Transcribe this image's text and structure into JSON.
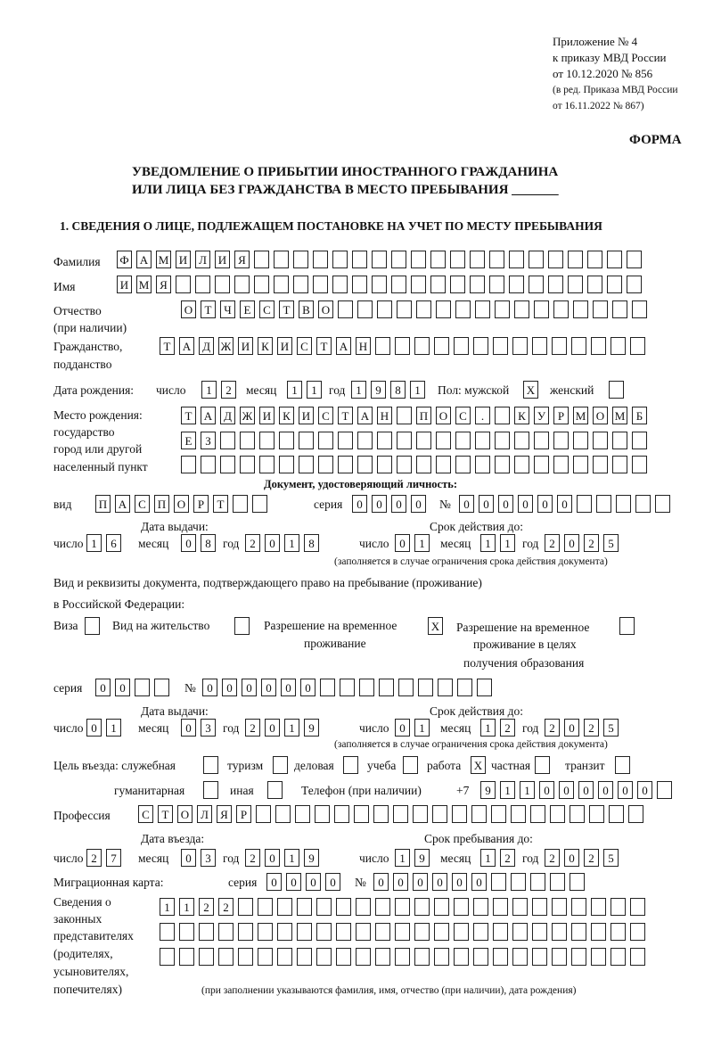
{
  "header": {
    "line1": "Приложение № 4",
    "line2": "к приказу МВД России",
    "line3": "от 10.12.2020 № 856",
    "line4": "(в ред. Приказа МВД России",
    "line5": "от 16.11.2022 № 867)",
    "form": "ФОРМА"
  },
  "title": {
    "line1": "УВЕДОМЛЕНИЕ О ПРИБЫТИИ ИНОСТРАННОГО ГРАЖДАНИНА",
    "line2": "ИЛИ ЛИЦА БЕЗ ГРАЖДАНСТВА В МЕСТО ПРЕБЫВАНИЯ _______"
  },
  "section1": "1. СВЕДЕНИЯ О ЛИЦЕ, ПОДЛЕЖАЩЕМ ПОСТАНОВКЕ НА УЧЕТ ПО МЕСТУ ПРЕБЫВАНИЯ",
  "labels": {
    "surname": "Фамилия",
    "name": "Имя",
    "patronymic": "Отчество",
    "patronymic2": "(при наличии)",
    "citizenship": "Гражданство,",
    "citizenship2": "подданство",
    "dob": "Дата рождения:",
    "day": "число",
    "month": "месяц",
    "year": "год",
    "sex": "Пол: мужской",
    "female": "женский",
    "pob": "Место рождения:",
    "pob2": "государство",
    "pob3": "город или другой",
    "pob4": "населенный пункт",
    "id_doc": "Документ, удостоверяющий личность:",
    "kind": "вид",
    "series": "серия",
    "number": "№",
    "issue_date": "Дата выдачи:",
    "valid_until": "Срок действия до:",
    "validity_note": "(заполняется в случае ограничения срока действия документа)",
    "right_doc": "Вид и реквизиты документа, подтверждающего право на пребывание (проживание)",
    "right_doc2": "в Российской Федерации:",
    "visa": "Виза",
    "residence": "Вид на жительство",
    "temp_permit": "Разрешение на временное",
    "temp_permit2": "проживание",
    "temp_edu": "Разрешение на временное",
    "temp_edu2": "проживание в целях",
    "temp_edu3": "получения образования",
    "purpose": "Цель въезда: служебная",
    "tourism": "туризм",
    "business": "деловая",
    "study": "учеба",
    "work": "работа",
    "private": "частная",
    "transit": "транзит",
    "humanitarian": "гуманитарная",
    "other": "иная",
    "phone": "Телефон (при наличии)",
    "phone_prefix": "+7",
    "profession": "Профессия",
    "entry_date": "Дата въезда:",
    "stay_until": "Срок пребывания до:",
    "migration_card": "Миграционная карта:",
    "reps1": "Сведения о",
    "reps2": "законных",
    "reps3": "представителях",
    "reps4": "(родителях,",
    "reps5": "усыновителях,",
    "reps6": "попечителях)",
    "reps_note": "(при заполнении указываются фамилия, имя, отчество (при наличии), дата рождения)"
  },
  "fields": {
    "surname": [
      "Ф",
      "А",
      "М",
      "И",
      "Л",
      "И",
      "Я",
      "",
      "",
      "",
      "",
      "",
      "",
      "",
      "",
      "",
      "",
      "",
      "",
      "",
      "",
      "",
      "",
      "",
      "",
      "",
      ""
    ],
    "name": [
      "И",
      "М",
      "Я",
      "",
      "",
      "",
      "",
      "",
      "",
      "",
      "",
      "",
      "",
      "",
      "",
      "",
      "",
      "",
      "",
      "",
      "",
      "",
      "",
      "",
      "",
      "",
      ""
    ],
    "patronymic": [
      "О",
      "Т",
      "Ч",
      "Е",
      "С",
      "Т",
      "В",
      "О",
      "",
      "",
      "",
      "",
      "",
      "",
      "",
      "",
      "",
      "",
      "",
      "",
      "",
      "",
      "",
      ""
    ],
    "citizenship": [
      "Т",
      "А",
      "Д",
      "Ж",
      "И",
      "К",
      "И",
      "С",
      "Т",
      "А",
      "Н",
      "",
      "",
      "",
      "",
      "",
      "",
      "",
      "",
      "",
      "",
      "",
      "",
      "",
      ""
    ],
    "dob_day": [
      "1",
      "2"
    ],
    "dob_month": [
      "1",
      "1"
    ],
    "dob_year": [
      "1",
      "9",
      "8",
      "1"
    ],
    "male": [
      "X"
    ],
    "female": [
      ""
    ],
    "pob1": [
      "Т",
      "А",
      "Д",
      "Ж",
      "И",
      "К",
      "И",
      "С",
      "Т",
      "А",
      "Н",
      "",
      "П",
      "О",
      "С",
      ".",
      "",
      "К",
      "У",
      "Р",
      "М",
      "О",
      "М",
      "Б"
    ],
    "pob2": [
      "Е",
      "З",
      "",
      "",
      "",
      "",
      "",
      "",
      "",
      "",
      "",
      "",
      "",
      "",
      "",
      "",
      "",
      "",
      "",
      "",
      "",
      "",
      "",
      ""
    ],
    "pob3": [
      "",
      "",
      "",
      "",
      "",
      "",
      "",
      "",
      "",
      "",
      "",
      "",
      "",
      "",
      "",
      "",
      "",
      "",
      "",
      "",
      "",
      "",
      "",
      ""
    ],
    "doc_kind": [
      "П",
      "А",
      "С",
      "П",
      "О",
      "Р",
      "Т",
      "",
      ""
    ],
    "doc_series": [
      "0",
      "0",
      "0",
      "0"
    ],
    "doc_number": [
      "0",
      "0",
      "0",
      "0",
      "0",
      "0",
      "",
      "",
      "",
      "",
      ""
    ],
    "doc_issue_day": [
      "1",
      "6"
    ],
    "doc_issue_month": [
      "0",
      "8"
    ],
    "doc_issue_year": [
      "2",
      "0",
      "1",
      "8"
    ],
    "doc_valid_day": [
      "0",
      "1"
    ],
    "doc_valid_month": [
      "1",
      "1"
    ],
    "doc_valid_year": [
      "2",
      "0",
      "2",
      "5"
    ],
    "visa": [
      ""
    ],
    "residence": [
      ""
    ],
    "temp_permit": [
      "X"
    ],
    "temp_edu": [
      ""
    ],
    "right_series": [
      "0",
      "0",
      "",
      ""
    ],
    "right_number": [
      "0",
      "0",
      "0",
      "0",
      "0",
      "0",
      "",
      "",
      "",
      "",
      "",
      "",
      "",
      "",
      ""
    ],
    "right_issue_day": [
      "0",
      "1"
    ],
    "right_issue_month": [
      "0",
      "3"
    ],
    "right_issue_year": [
      "2",
      "0",
      "1",
      "9"
    ],
    "right_valid_day": [
      "0",
      "1"
    ],
    "right_valid_month": [
      "1",
      "2"
    ],
    "right_valid_year": [
      "2",
      "0",
      "2",
      "5"
    ],
    "p_service": [
      ""
    ],
    "p_tourism": [
      ""
    ],
    "p_business": [
      ""
    ],
    "p_study": [
      ""
    ],
    "p_work": [
      "X"
    ],
    "p_private": [
      ""
    ],
    "p_transit": [
      ""
    ],
    "p_humanitarian": [
      ""
    ],
    "p_other": [
      ""
    ],
    "phone": [
      "9",
      "1",
      "1",
      "0",
      "0",
      "0",
      "0",
      "0",
      "0",
      ""
    ],
    "profession": [
      "С",
      "Т",
      "О",
      "Л",
      "Я",
      "Р",
      "",
      "",
      "",
      "",
      "",
      "",
      "",
      "",
      "",
      "",
      "",
      "",
      "",
      "",
      "",
      "",
      "",
      "",
      "",
      ""
    ],
    "entry_day": [
      "2",
      "7"
    ],
    "entry_month": [
      "0",
      "3"
    ],
    "entry_year": [
      "2",
      "0",
      "1",
      "9"
    ],
    "stay_day": [
      "1",
      "9"
    ],
    "stay_month": [
      "1",
      "2"
    ],
    "stay_year": [
      "2",
      "0",
      "2",
      "5"
    ],
    "mc_series": [
      "0",
      "0",
      "0",
      "0"
    ],
    "mc_number": [
      "0",
      "0",
      "0",
      "0",
      "0",
      "0",
      "",
      "",
      "",
      "",
      ""
    ],
    "reps1": [
      "1",
      "1",
      "2",
      "2",
      "",
      "",
      "",
      "",
      "",
      "",
      "",
      "",
      "",
      "",
      "",
      "",
      "",
      "",
      "",
      "",
      "",
      "",
      "",
      "",
      ""
    ],
    "reps2": [
      "",
      "",
      "",
      "",
      "",
      "",
      "",
      "",
      "",
      "",
      "",
      "",
      "",
      "",
      "",
      "",
      "",
      "",
      "",
      "",
      "",
      "",
      "",
      "",
      ""
    ],
    "reps3": [
      "",
      "",
      "",
      "",
      "",
      "",
      "",
      "",
      "",
      "",
      "",
      "",
      "",
      "",
      "",
      "",
      "",
      "",
      "",
      "",
      "",
      "",
      "",
      "",
      ""
    ]
  }
}
